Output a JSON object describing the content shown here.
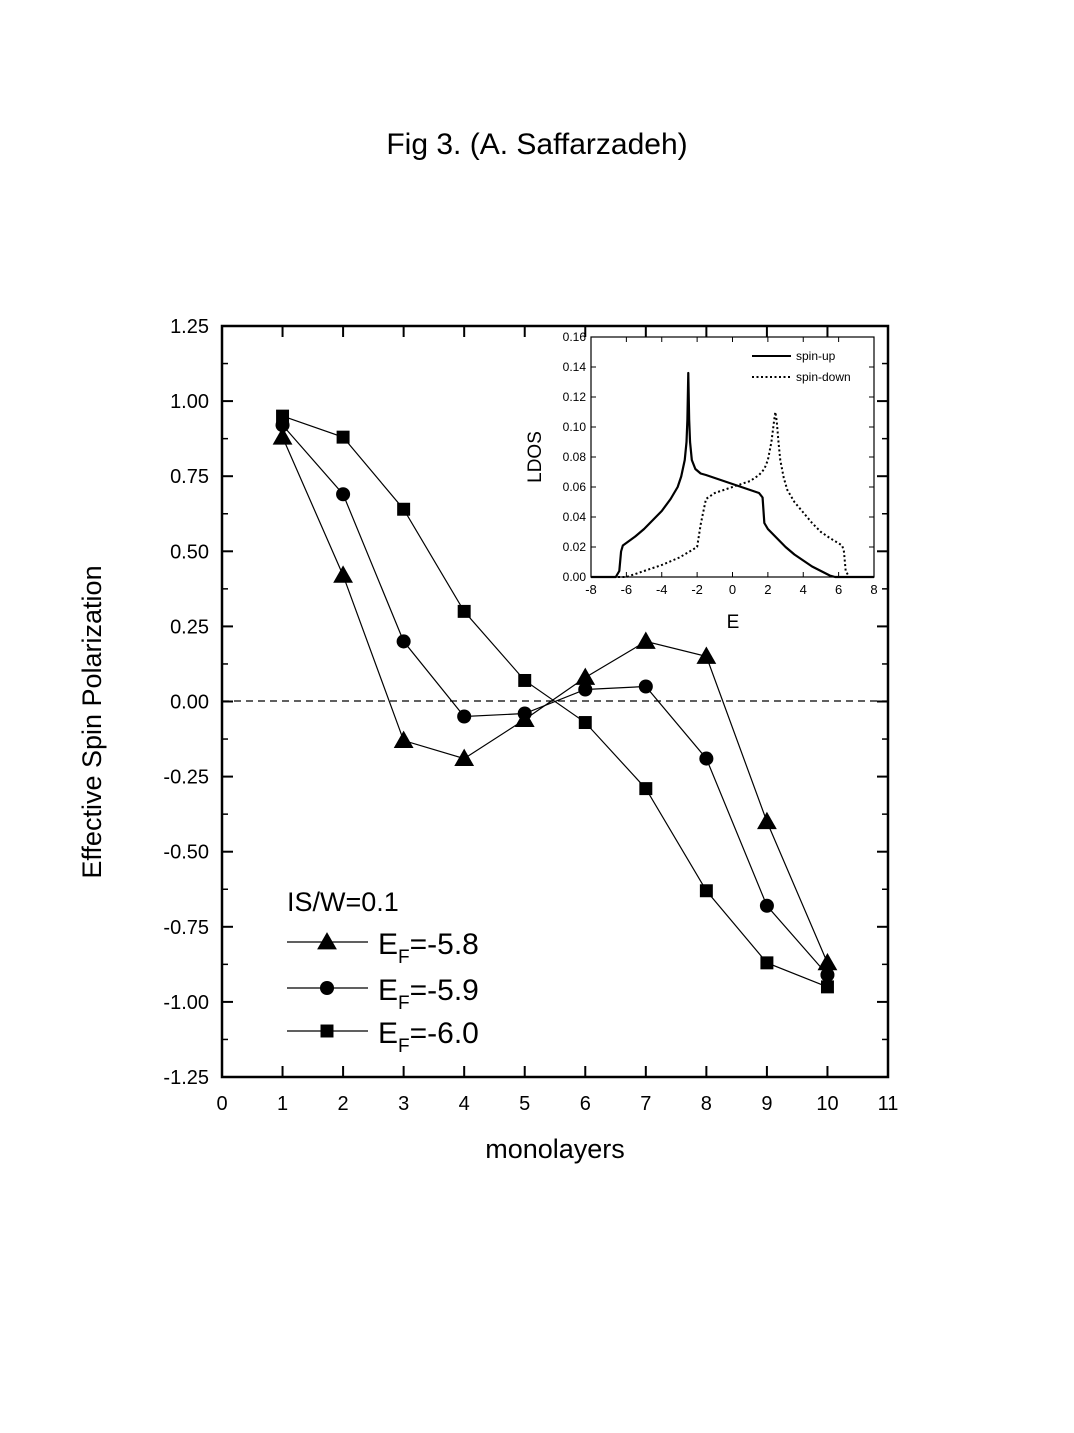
{
  "page_title": "Fig 3. (A. Saffarzadeh)",
  "chart_data": [
    {
      "type": "line",
      "title": "",
      "xlabel": "monolayers",
      "ylabel": "Effective Spin Polarization",
      "xlim": [
        0,
        11
      ],
      "ylim": [
        -1.25,
        1.25
      ],
      "xticks": [
        0,
        1,
        2,
        3,
        4,
        5,
        6,
        7,
        8,
        9,
        10,
        11
      ],
      "yticks": [
        1.25,
        1.0,
        0.75,
        0.5,
        0.25,
        0.0,
        -0.25,
        -0.5,
        -0.75,
        -1.0,
        -1.25
      ],
      "ytick_labels": [
        "1.25",
        "1.00",
        "0.75",
        "0.50",
        "0.25",
        "0.00",
        "-0.25",
        "-0.50",
        "-0.75",
        "-1.00",
        "-1.25"
      ],
      "reference_line": {
        "y": 0.0,
        "style": "dashed"
      },
      "annotation": "IS/W=0.1",
      "legend_position": "bottom-left",
      "x": [
        1,
        2,
        3,
        4,
        5,
        6,
        7,
        8,
        9,
        10
      ],
      "series": [
        {
          "name": "E_F=-5.8",
          "legend_main": "E",
          "legend_sub": "F",
          "legend_rest": "=-5.8",
          "marker": "triangle",
          "values": [
            0.88,
            0.42,
            -0.13,
            -0.19,
            -0.06,
            0.08,
            0.2,
            0.15,
            -0.4,
            -0.87
          ]
        },
        {
          "name": "E_F=-5.9",
          "legend_main": "E",
          "legend_sub": "F",
          "legend_rest": "=-5.9",
          "marker": "circle",
          "values": [
            0.92,
            0.69,
            0.2,
            -0.05,
            -0.04,
            0.04,
            0.05,
            -0.19,
            -0.68,
            -0.91
          ]
        },
        {
          "name": "E_F=-6.0",
          "legend_main": "E",
          "legend_sub": "F",
          "legend_rest": "=-6.0",
          "marker": "square",
          "values": [
            0.95,
            0.88,
            0.64,
            0.3,
            0.07,
            -0.07,
            -0.29,
            -0.63,
            -0.87,
            -0.95
          ]
        }
      ]
    },
    {
      "type": "line",
      "title": "",
      "xlabel": "E",
      "ylabel": "LDOS",
      "xlim": [
        -8,
        8
      ],
      "ylim": [
        0.0,
        0.16
      ],
      "xticks": [
        -8,
        -6,
        -4,
        -2,
        0,
        2,
        4,
        6,
        8
      ],
      "yticks": [
        0.0,
        0.02,
        0.04,
        0.06,
        0.08,
        0.1,
        0.12,
        0.14,
        0.16
      ],
      "ytick_labels": [
        "0.00",
        "0.02",
        "0.04",
        "0.06",
        "0.08",
        "0.10",
        "0.12",
        "0.14",
        "0.16"
      ],
      "legend_position": "top-right",
      "series": [
        {
          "name": "spin-up",
          "style": "solid",
          "x": [
            -8,
            -6.6,
            -6.4,
            -6.3,
            -6.2,
            -5.5,
            -5.0,
            -4.5,
            -4.0,
            -3.5,
            -3.1,
            -2.9,
            -2.7,
            -2.6,
            -2.55,
            -2.5,
            -2.45,
            -2.4,
            -2.3,
            -2.1,
            -1.8,
            -1.5,
            -1.0,
            -0.5,
            0.0,
            0.5,
            1.0,
            1.5,
            1.7,
            1.8,
            2.0,
            2.5,
            3.0,
            3.5,
            4.0,
            4.5,
            5.0,
            5.5,
            5.8,
            8
          ],
          "y": [
            0.0,
            0.0,
            0.004,
            0.017,
            0.021,
            0.027,
            0.032,
            0.038,
            0.044,
            0.052,
            0.06,
            0.067,
            0.078,
            0.09,
            0.105,
            0.136,
            0.105,
            0.09,
            0.078,
            0.072,
            0.069,
            0.068,
            0.066,
            0.064,
            0.062,
            0.06,
            0.058,
            0.056,
            0.053,
            0.036,
            0.032,
            0.026,
            0.02,
            0.015,
            0.011,
            0.007,
            0.004,
            0.001,
            0.0,
            0.0
          ]
        },
        {
          "name": "spin-down",
          "style": "dotted",
          "x": [
            -8,
            -6.0,
            -5.0,
            -4.0,
            -3.0,
            -2.0,
            -1.8,
            -1.5,
            -1.0,
            -0.5,
            0.0,
            0.5,
            1.0,
            1.5,
            1.8,
            2.0,
            2.2,
            2.35,
            2.42,
            2.5,
            2.6,
            2.7,
            2.9,
            3.1,
            3.5,
            4.0,
            4.5,
            5.0,
            5.5,
            6.2,
            6.3,
            6.4,
            6.6,
            8
          ],
          "y": [
            0.0,
            0.0,
            0.004,
            0.008,
            0.013,
            0.02,
            0.035,
            0.052,
            0.056,
            0.058,
            0.06,
            0.062,
            0.064,
            0.068,
            0.072,
            0.078,
            0.09,
            0.104,
            0.11,
            0.104,
            0.09,
            0.078,
            0.066,
            0.058,
            0.05,
            0.043,
            0.036,
            0.03,
            0.026,
            0.021,
            0.017,
            0.004,
            0.0,
            0.0
          ]
        }
      ]
    }
  ]
}
